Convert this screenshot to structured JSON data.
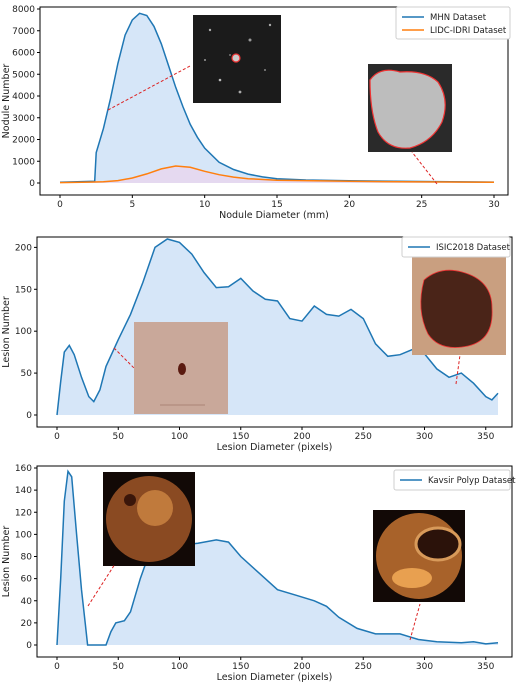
{
  "chart_data": [
    {
      "type": "area",
      "xlabel": "Nodule Diameter (mm)",
      "ylabel": "Nodule Number",
      "xlim": [
        0,
        30
      ],
      "ylim": [
        0,
        8000
      ],
      "xticks": [
        0,
        5,
        10,
        15,
        20,
        25,
        30
      ],
      "yticks": [
        0,
        1000,
        2000,
        3000,
        4000,
        5000,
        6000,
        7000,
        8000
      ],
      "legend_position": "top-right",
      "series": [
        {
          "name": "MHN Dataset",
          "color": "#1f77b4",
          "fill": "#cfe2f7",
          "points": [
            [
              0,
              30
            ],
            [
              2.4,
              80
            ],
            [
              2.5,
              1400
            ],
            [
              3,
              2500
            ],
            [
              3.5,
              3900
            ],
            [
              4,
              5500
            ],
            [
              4.5,
              6800
            ],
            [
              5,
              7500
            ],
            [
              5.5,
              7800
            ],
            [
              6,
              7700
            ],
            [
              6.5,
              7200
            ],
            [
              7,
              6400
            ],
            [
              7.5,
              5400
            ],
            [
              8,
              4400
            ],
            [
              8.5,
              3500
            ],
            [
              9,
              2700
            ],
            [
              9.5,
              2100
            ],
            [
              10,
              1600
            ],
            [
              11,
              950
            ],
            [
              12,
              620
            ],
            [
              13,
              410
            ],
            [
              14,
              280
            ],
            [
              15,
              200
            ],
            [
              17,
              140
            ],
            [
              20,
              100
            ],
            [
              25,
              70
            ],
            [
              30,
              40
            ]
          ]
        },
        {
          "name": "LIDC-IDRI Dataset",
          "color": "#ff7f0e",
          "fill": "#e8d6ee",
          "points": [
            [
              0,
              20
            ],
            [
              2,
              40
            ],
            [
              3,
              60
            ],
            [
              4,
              110
            ],
            [
              5,
              230
            ],
            [
              6,
              420
            ],
            [
              7,
              650
            ],
            [
              8,
              780
            ],
            [
              9,
              720
            ],
            [
              10,
              540
            ],
            [
              11,
              380
            ],
            [
              12,
              270
            ],
            [
              13,
              200
            ],
            [
              15,
              130
            ],
            [
              20,
              80
            ],
            [
              25,
              50
            ],
            [
              30,
              30
            ]
          ]
        }
      ]
    },
    {
      "type": "area",
      "xlabel": "Lesion Diameter (pixels)",
      "ylabel": "Lesion Number",
      "xlim": [
        0,
        360
      ],
      "ylim": [
        0,
        210
      ],
      "xticks": [
        0,
        50,
        100,
        150,
        200,
        250,
        300,
        350
      ],
      "yticks": [
        0,
        50,
        100,
        150,
        200
      ],
      "legend_position": "top-right",
      "series": [
        {
          "name": "ISIC2018 Dataset",
          "color": "#1f77b4",
          "fill": "#cfe2f7",
          "points": [
            [
              0,
              0
            ],
            [
              3,
              40
            ],
            [
              6,
              75
            ],
            [
              10,
              83
            ],
            [
              14,
              72
            ],
            [
              20,
              45
            ],
            [
              26,
              22
            ],
            [
              30,
              16
            ],
            [
              35,
              30
            ],
            [
              40,
              58
            ],
            [
              50,
              90
            ],
            [
              60,
              120
            ],
            [
              70,
              158
            ],
            [
              80,
              200
            ],
            [
              90,
              210
            ],
            [
              100,
              206
            ],
            [
              110,
              192
            ],
            [
              120,
              170
            ],
            [
              130,
              152
            ],
            [
              140,
              153
            ],
            [
              150,
              163
            ],
            [
              160,
              148
            ],
            [
              170,
              138
            ],
            [
              180,
              136
            ],
            [
              190,
              115
            ],
            [
              200,
              112
            ],
            [
              210,
              130
            ],
            [
              220,
              120
            ],
            [
              230,
              118
            ],
            [
              240,
              126
            ],
            [
              250,
              115
            ],
            [
              260,
              85
            ],
            [
              270,
              70
            ],
            [
              280,
              72
            ],
            [
              290,
              78
            ],
            [
              300,
              73
            ],
            [
              310,
              55
            ],
            [
              320,
              45
            ],
            [
              330,
              50
            ],
            [
              340,
              38
            ],
            [
              350,
              22
            ],
            [
              355,
              18
            ],
            [
              360,
              26
            ]
          ]
        }
      ]
    },
    {
      "type": "area",
      "xlabel": "Lesion Diameter (pixels)",
      "ylabel": "Lesion Number",
      "xlim": [
        0,
        360
      ],
      "ylim": [
        0,
        160
      ],
      "xticks": [
        0,
        50,
        100,
        150,
        200,
        250,
        300,
        350
      ],
      "yticks": [
        0,
        20,
        40,
        60,
        80,
        100,
        120,
        140,
        160
      ],
      "legend_position": "top-right",
      "series": [
        {
          "name": "Kavsir Polyp Dataset",
          "color": "#1f77b4",
          "fill": "#cfe2f7",
          "points": [
            [
              0,
              0
            ],
            [
              3,
              60
            ],
            [
              6,
              130
            ],
            [
              9,
              157
            ],
            [
              12,
              152
            ],
            [
              16,
              100
            ],
            [
              20,
              50
            ],
            [
              23,
              20
            ],
            [
              25,
              0
            ],
            [
              40,
              0
            ],
            [
              44,
              12
            ],
            [
              48,
              20
            ],
            [
              55,
              22
            ],
            [
              60,
              30
            ],
            [
              68,
              60
            ],
            [
              76,
              85
            ],
            [
              85,
              90
            ],
            [
              100,
              90
            ],
            [
              115,
              92
            ],
            [
              130,
              95
            ],
            [
              140,
              93
            ],
            [
              150,
              80
            ],
            [
              165,
              65
            ],
            [
              180,
              50
            ],
            [
              195,
              45
            ],
            [
              210,
              40
            ],
            [
              220,
              35
            ],
            [
              230,
              25
            ],
            [
              245,
              15
            ],
            [
              260,
              10
            ],
            [
              280,
              10
            ],
            [
              295,
              5
            ],
            [
              310,
              3
            ],
            [
              330,
              2
            ],
            [
              340,
              3
            ],
            [
              350,
              1
            ],
            [
              360,
              2
            ]
          ]
        }
      ]
    }
  ]
}
